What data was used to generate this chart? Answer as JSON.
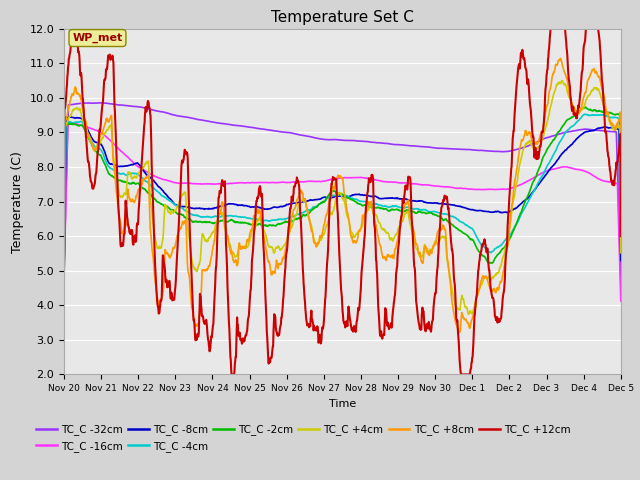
{
  "title": "Temperature Set C",
  "xlabel": "Time",
  "ylabel": "Temperature (C)",
  "ylim": [
    2.0,
    12.0
  ],
  "yticks": [
    2.0,
    3.0,
    4.0,
    5.0,
    6.0,
    7.0,
    8.0,
    9.0,
    10.0,
    11.0,
    12.0
  ],
  "plot_bg_color": "#e8e8e8",
  "fig_bg_color": "#d4d4d4",
  "series": [
    {
      "label": "TC_C -32cm",
      "color": "#9933FF",
      "lw": 1.2
    },
    {
      "label": "TC_C -16cm",
      "color": "#FF33FF",
      "lw": 1.2
    },
    {
      "label": "TC_C -8cm",
      "color": "#0000CC",
      "lw": 1.2
    },
    {
      "label": "TC_C -4cm",
      "color": "#00CCCC",
      "lw": 1.2
    },
    {
      "label": "TC_C -2cm",
      "color": "#00BB00",
      "lw": 1.2
    },
    {
      "label": "TC_C +4cm",
      "color": "#CCCC00",
      "lw": 1.2
    },
    {
      "label": "TC_C +8cm",
      "color": "#FF9900",
      "lw": 1.2
    },
    {
      "label": "TC_C +12cm",
      "color": "#CC0000",
      "lw": 1.5
    }
  ],
  "wp_met_box_color": "#EEEE99",
  "wp_met_text_color": "#990000",
  "xtick_labels": [
    "Nov 20",
    "Nov 21",
    "Nov 22",
    "Nov 23",
    "Nov 24",
    "Nov 25",
    "Nov 26",
    "Nov 27",
    "Nov 28",
    "Nov 29",
    "Nov 30",
    "Dec 1",
    "Dec 2",
    "Dec 3",
    "Dec 4",
    "Dec 5"
  ],
  "xtick_positions": [
    0,
    1,
    2,
    3,
    4,
    5,
    6,
    7,
    8,
    9,
    10,
    11,
    12,
    13,
    14,
    15
  ]
}
